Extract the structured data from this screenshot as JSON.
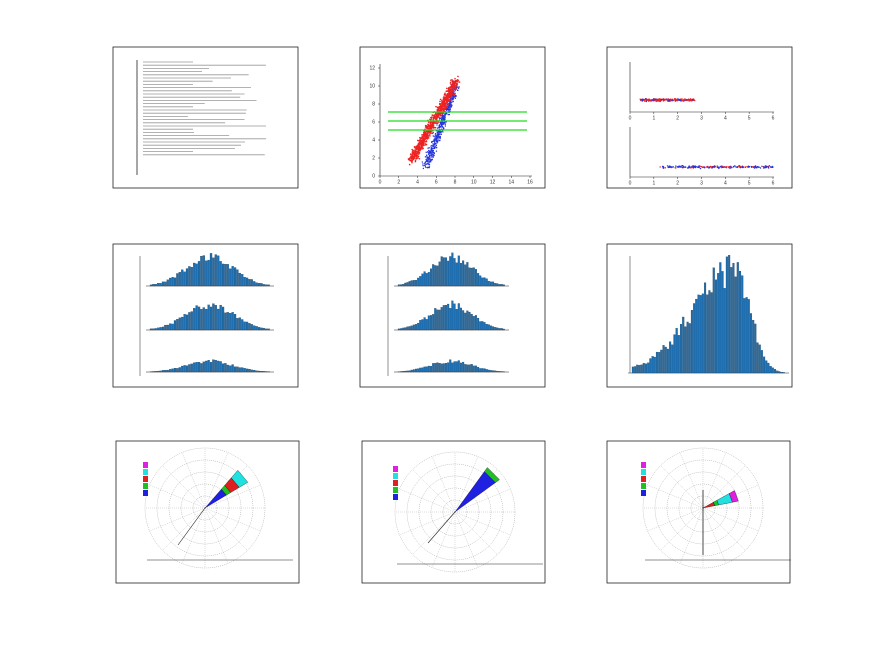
{
  "panels": [
    {
      "xticks": [
        0,
        2,
        4,
        6,
        8,
        10,
        12,
        14,
        16
      ],
      "yticks": [
        0,
        2,
        4,
        6,
        8,
        10,
        12
      ]
    },
    {
      "xticks": [
        0,
        1,
        2,
        3,
        4,
        5,
        6
      ]
    }
  ]
}
